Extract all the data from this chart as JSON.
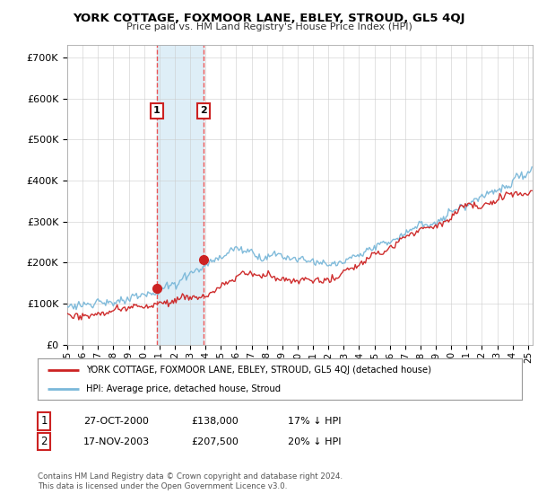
{
  "title": "YORK COTTAGE, FOXMOOR LANE, EBLEY, STROUD, GL5 4QJ",
  "subtitle": "Price paid vs. HM Land Registry's House Price Index (HPI)",
  "ytick_values": [
    0,
    100000,
    200000,
    300000,
    400000,
    500000,
    600000,
    700000
  ],
  "ylim": [
    0,
    730000
  ],
  "xlim_start": 1995.0,
  "xlim_end": 2025.3,
  "hpi_color": "#7ab8d9",
  "price_color": "#cc2222",
  "sale_line_color": "#ee4444",
  "shade_color": "#d0e8f5",
  "sale1_date": 2000.83,
  "sale1_price": 138000,
  "sale2_date": 2003.88,
  "sale2_price": 207500,
  "legend_entry1": "YORK COTTAGE, FOXMOOR LANE, EBLEY, STROUD, GL5 4QJ (detached house)",
  "legend_entry2": "HPI: Average price, detached house, Stroud",
  "table_row1": [
    "1",
    "27-OCT-2000",
    "£138,000",
    "17% ↓ HPI"
  ],
  "table_row2": [
    "2",
    "17-NOV-2003",
    "£207,500",
    "20% ↓ HPI"
  ],
  "footnote": "Contains HM Land Registry data © Crown copyright and database right 2024.\nThis data is licensed under the Open Government Licence v3.0.",
  "background_color": "#ffffff",
  "grid_color": "#cccccc"
}
